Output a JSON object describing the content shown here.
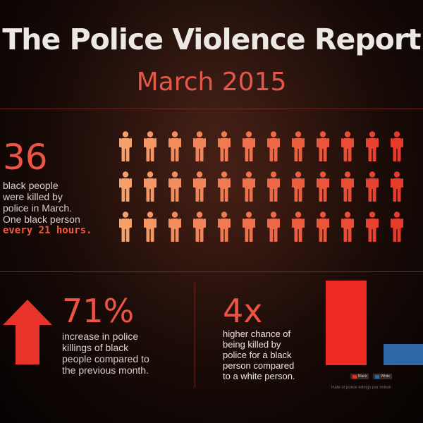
{
  "header": {
    "title": "The Police Violence Report",
    "subtitle": "March 2015"
  },
  "victims": {
    "count": "36",
    "line1": "black people",
    "line2": "were killed by",
    "line3": "police in March.",
    "line4": "One black person",
    "highlight": "every 21 hours.",
    "icon_total": 36
  },
  "increase": {
    "value": "71%",
    "line1": "increase in police",
    "line2": "killings of black",
    "line3": "people compared to",
    "line4": "the previous month."
  },
  "chance": {
    "value": "4x",
    "line1": "higher chance of",
    "line2": "being killed by",
    "line3": "police for a black",
    "line4": "person compared",
    "line5": "to a white person."
  },
  "chart_data": {
    "type": "bar",
    "categories": [
      "Black",
      "White"
    ],
    "values": [
      4,
      1
    ],
    "title": "Rate of police killings per million",
    "ylim": [
      0,
      4.4
    ],
    "series_colors": [
      "#ee2b22",
      "#2f66a6"
    ],
    "legend": [
      "Black",
      "White"
    ]
  },
  "colors": {
    "accent": "#ee5446",
    "icon_bright": "#f5a06a",
    "icon_red": "#e63a2a",
    "arrow": "#e8332a"
  }
}
